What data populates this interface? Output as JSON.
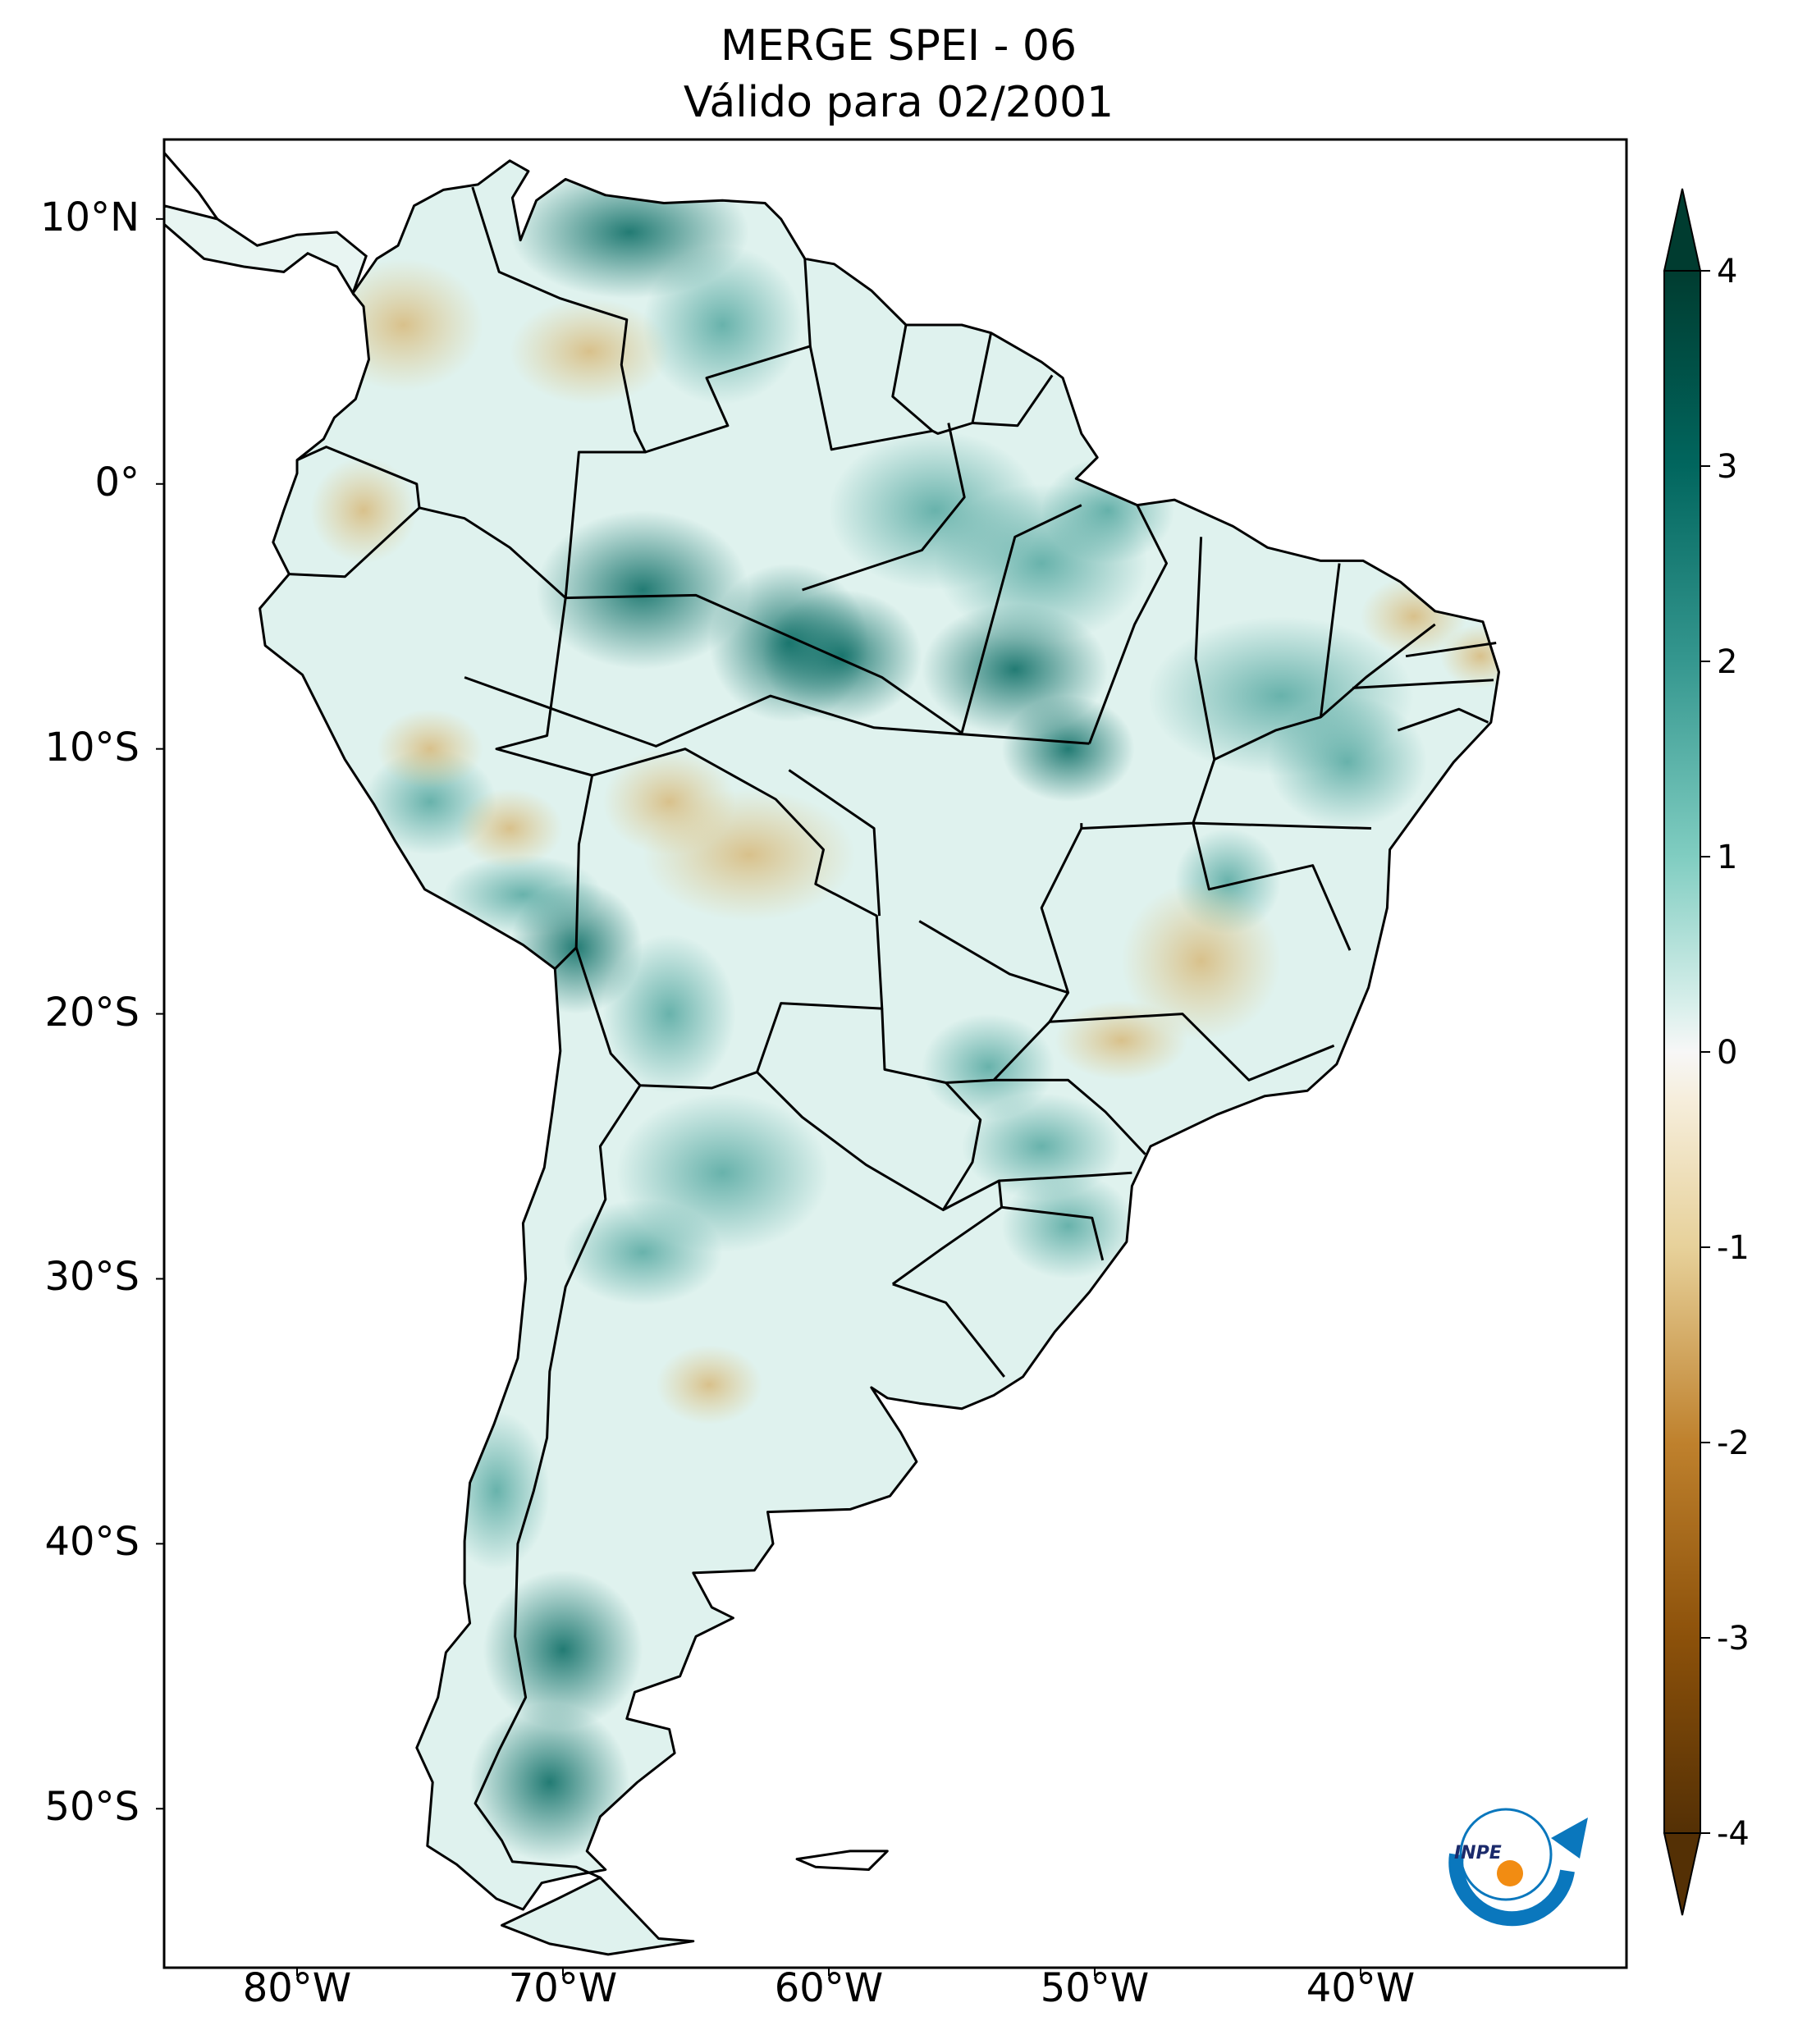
{
  "title": {
    "line1": "MERGE   SPEI - 06",
    "line2": "Válido para 02/2001"
  },
  "map": {
    "lon_range": [
      -85,
      -30
    ],
    "lat_range": [
      -56,
      13
    ],
    "lat_ticks": [
      {
        "value": 10,
        "label": "10°N"
      },
      {
        "value": 0,
        "label": "0°"
      },
      {
        "value": -10,
        "label": "10°S"
      },
      {
        "value": -20,
        "label": "20°S"
      },
      {
        "value": -30,
        "label": "30°S"
      },
      {
        "value": -40,
        "label": "40°S"
      },
      {
        "value": -50,
        "label": "50°S"
      }
    ],
    "lon_ticks": [
      {
        "value": -80,
        "label": "80°W"
      },
      {
        "value": -70,
        "label": "70°W"
      },
      {
        "value": -60,
        "label": "60°W"
      },
      {
        "value": -50,
        "label": "50°W"
      },
      {
        "value": -40,
        "label": "40°W"
      }
    ]
  },
  "colorbar": {
    "ticks": [
      "4",
      "3",
      "2",
      "1",
      "0",
      "-1",
      "-2",
      "-3",
      "-4"
    ],
    "colors": {
      "max": "#003c30",
      "high": "#01665e",
      "mid_high": "#35978f",
      "low_pos": "#80cdc1",
      "light_pos": "#c7eae5",
      "zero": "#f5f5f5",
      "light_neg": "#f6e8c3",
      "low_neg": "#dfc27d",
      "mid_neg": "#bf812d",
      "neg_high": "#8c510a",
      "min": "#543005"
    }
  },
  "logo": {
    "text": "INPE"
  }
}
